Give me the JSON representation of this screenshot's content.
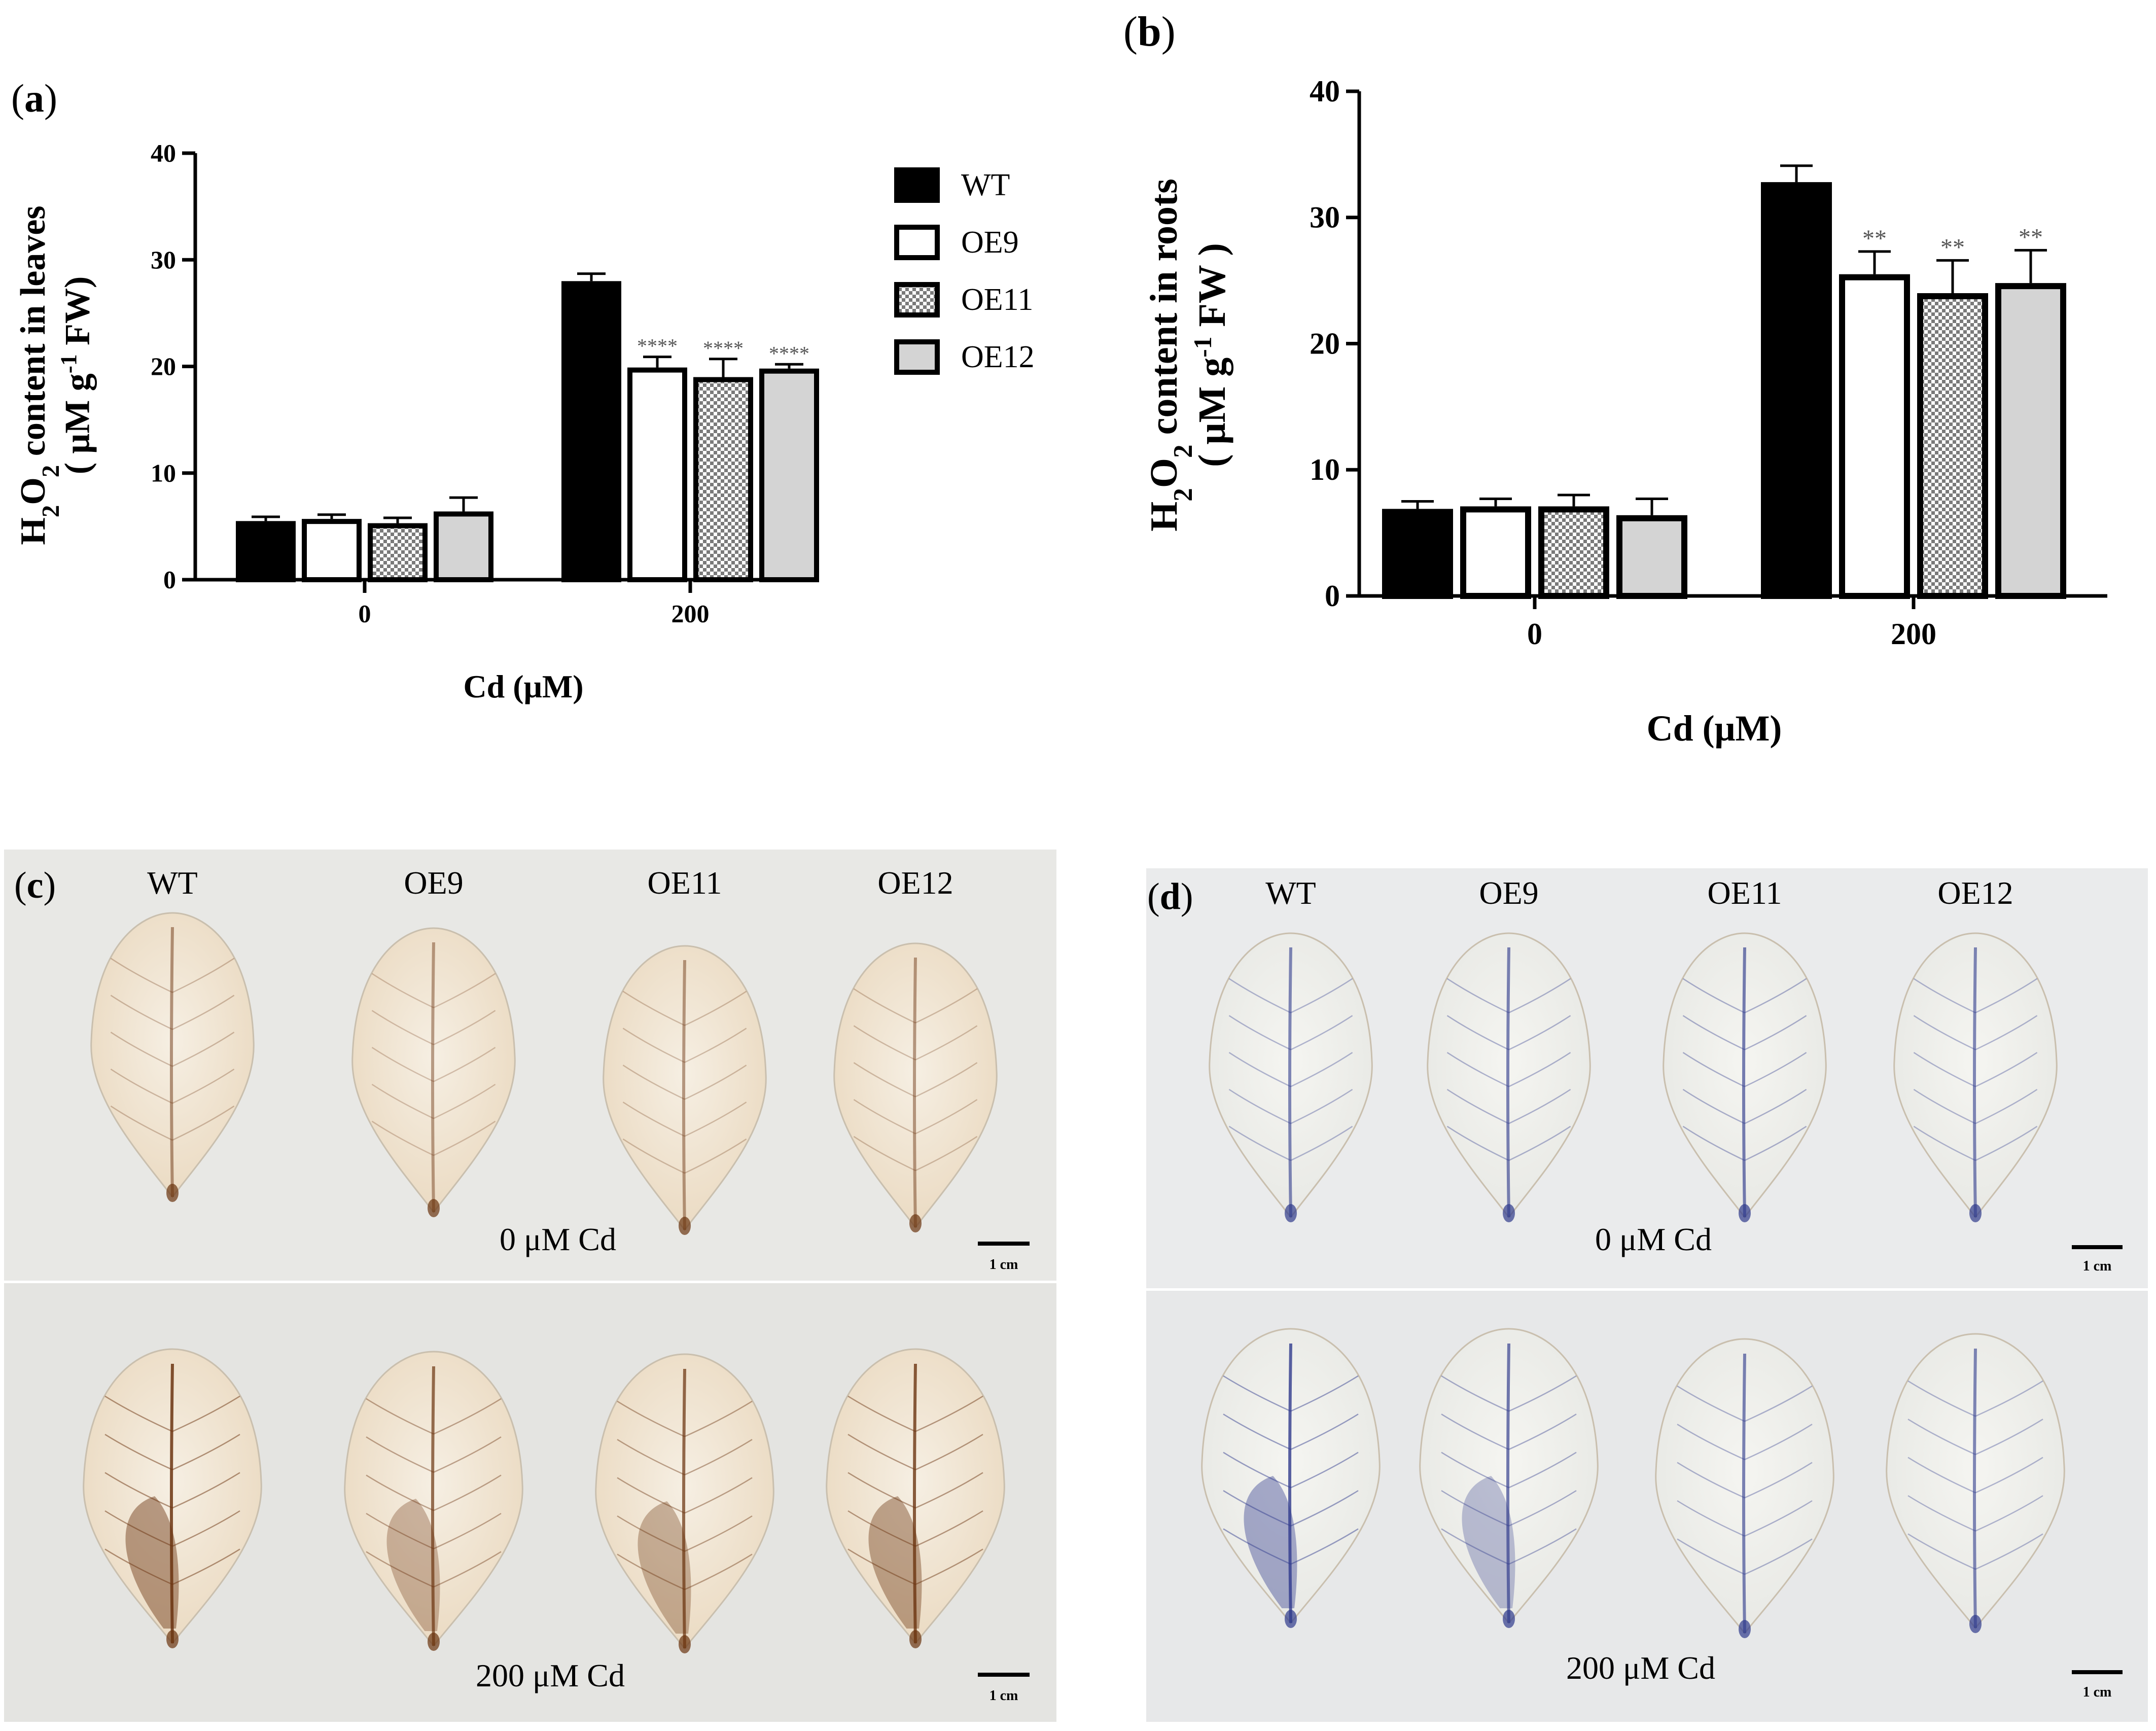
{
  "figure": {
    "panel_labels": [
      "a",
      "b",
      "c",
      "d"
    ]
  },
  "legend": {
    "entries": [
      {
        "name": "WT",
        "fill": "solid-black"
      },
      {
        "name": "OE9",
        "fill": "white"
      },
      {
        "name": "OE11",
        "fill": "checker"
      },
      {
        "name": "OE12",
        "fill": "light-grey"
      }
    ]
  },
  "colors": {
    "wt": "#000000",
    "oe9": "#ffffff",
    "oe11_pattern_dark": "#7a7a7a",
    "oe12": "#d4d4d4",
    "dab_stain": "#6b3410",
    "nbt_stain": "#2f3a8c",
    "photo_bg_c": "#e6e6e3",
    "photo_bg_d": "#e9eaec"
  },
  "chart_data": [
    {
      "panel": "a",
      "type": "bar",
      "title": "",
      "ylabel_line1": "H2O2 content in leaves",
      "ylabel_line2": "( μM g-1 FW)",
      "xlabel": "Cd (μM)",
      "categories": [
        "0",
        "200"
      ],
      "ylim": [
        0,
        40
      ],
      "yticks": [
        0,
        10,
        20,
        30,
        40
      ],
      "series": [
        {
          "name": "WT",
          "values": [
            5.5,
            28.0
          ],
          "errors": [
            0.4,
            0.7
          ]
        },
        {
          "name": "OE9",
          "values": [
            5.7,
            19.9
          ],
          "errors": [
            0.4,
            1.0
          ]
        },
        {
          "name": "OE11",
          "values": [
            5.3,
            19.0
          ],
          "errors": [
            0.5,
            1.7
          ]
        },
        {
          "name": "OE12",
          "values": [
            6.4,
            19.8
          ],
          "errors": [
            1.3,
            0.4
          ]
        }
      ],
      "annotations": [
        [
          "",
          ""
        ],
        [
          "",
          "****"
        ],
        [
          "",
          "****"
        ],
        [
          "",
          "****"
        ]
      ]
    },
    {
      "panel": "b",
      "type": "bar",
      "title": "",
      "ylabel_line1": "H2O2 content in roots",
      "ylabel_line2": "( μM g-1 FW )",
      "xlabel": "Cd (μM)",
      "categories": [
        "0",
        "200"
      ],
      "ylim": [
        0,
        40
      ],
      "yticks": [
        0,
        10,
        20,
        30,
        40
      ],
      "series": [
        {
          "name": "WT",
          "values": [
            6.9,
            32.8
          ],
          "errors": [
            0.6,
            1.3
          ]
        },
        {
          "name": "OE9",
          "values": [
            7.1,
            25.5
          ],
          "errors": [
            0.6,
            1.8
          ]
        },
        {
          "name": "OE11",
          "values": [
            7.1,
            24.0
          ],
          "errors": [
            0.9,
            2.6
          ]
        },
        {
          "name": "OE12",
          "values": [
            6.4,
            24.8
          ],
          "errors": [
            1.3,
            2.6
          ]
        }
      ],
      "annotations": [
        [
          "",
          ""
        ],
        [
          "",
          "**"
        ],
        [
          "",
          "**"
        ],
        [
          "",
          "**"
        ]
      ]
    }
  ],
  "photos": {
    "c": {
      "label": "c",
      "stain": "DAB",
      "genotypes": [
        "WT",
        "OE9",
        "OE11",
        "OE12"
      ],
      "row_top_caption": "0 μM Cd",
      "row_bottom_caption": "200 μM Cd",
      "scale_bar": "1 cm"
    },
    "d": {
      "label": "d",
      "stain": "NBT",
      "genotypes": [
        "WT",
        "OE9",
        "OE11",
        "OE12"
      ],
      "row_top_caption": "0 μM Cd",
      "row_bottom_caption": "200 μM Cd",
      "scale_bar": "1 cm"
    }
  }
}
